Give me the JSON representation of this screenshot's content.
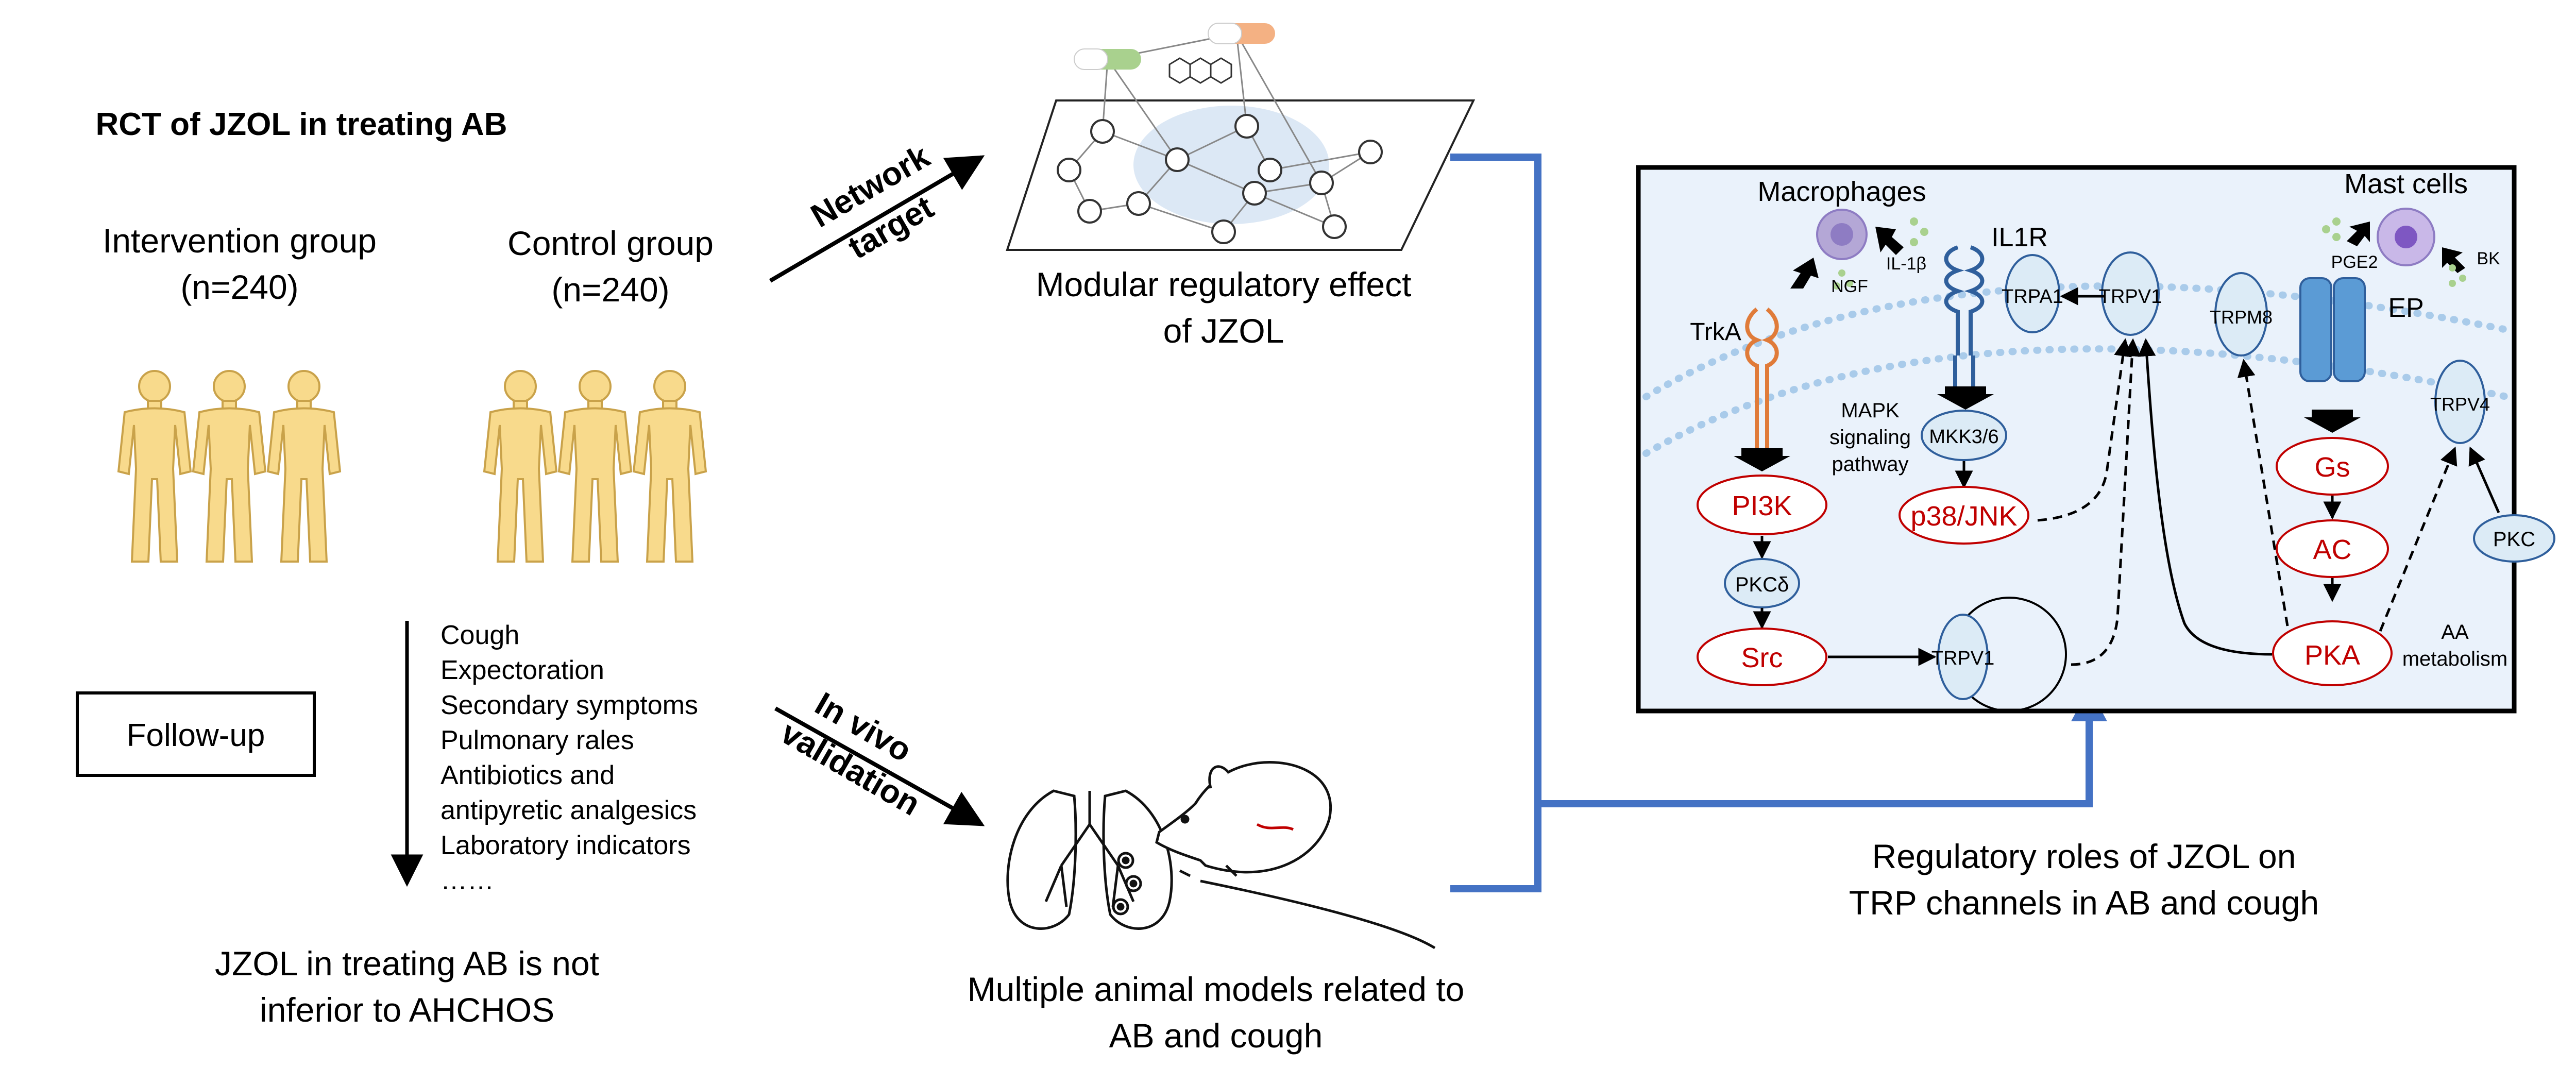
{
  "rct": {
    "title": "RCT of JZOL in treating AB",
    "intervention_label": "Intervention group",
    "intervention_n": "(n=240)",
    "control_label": "Control group",
    "control_n": "(n=240)",
    "followup": "Follow-up",
    "outcomes": [
      "Cough",
      "Expectoration",
      "Secondary symptoms",
      "Pulmonary rales",
      "Antibiotics and",
      "antipyretic analgesics",
      "Laboratory indicators",
      "……"
    ],
    "conclusion_line1": "JZOL in treating AB is not",
    "conclusion_line2": "inferior to AHCHOS"
  },
  "network": {
    "arrow_line1": "Network",
    "arrow_line2": "target",
    "caption_line1": "Modular regulatory effect",
    "caption_line2": "of JZOL"
  },
  "invivo": {
    "arrow_line1": "In vivo",
    "arrow_line2": "validation",
    "caption_line1": "Multiple animal models related to",
    "caption_line2": "AB and cough"
  },
  "pathway": {
    "macrophages": "Macrophages",
    "mast_cells": "Mast cells",
    "il1b": "IL-1β",
    "ngf": "NGF",
    "il1r": "IL1R",
    "trka": "TrkA",
    "trpa1": "TRPA1",
    "trpv1_top": "TRPV1",
    "trpm8": "TRPM8",
    "ep": "EP",
    "pge2": "PGE2",
    "bk": "BK",
    "trpv4": "TRPV4",
    "mapk_line1": "MAPK",
    "mapk_line2": "signaling",
    "mapk_line3": "pathway",
    "mkk": "MKK3/6",
    "p38": "p38/JNK",
    "pi3k": "PI3K",
    "pkcd": "PKCδ",
    "src": "Src",
    "trpv1_bottom": "TRPV1",
    "gs": "Gs",
    "ac": "AC",
    "pka": "PKA",
    "pkc": "PKC",
    "aa_line1": "AA",
    "aa_line2": "metabolism"
  },
  "pathway_caption": {
    "line1": "Regulatory roles of JZOL on",
    "line2": "TRP channels in AB and cough"
  },
  "colors": {
    "connector_blue": "#4472C4",
    "panel_bg": "#EAF2FB",
    "membrane": "#A9CBEA",
    "node_fill": "#DCEBF6",
    "red_text": "#C00000",
    "human_fill": "#F8DA8C",
    "human_stroke": "#C9A24A",
    "receptor_orange": "#E07B39",
    "receptor_blue": "#2F5F9C",
    "ep_blue": "#5B9BD5"
  }
}
